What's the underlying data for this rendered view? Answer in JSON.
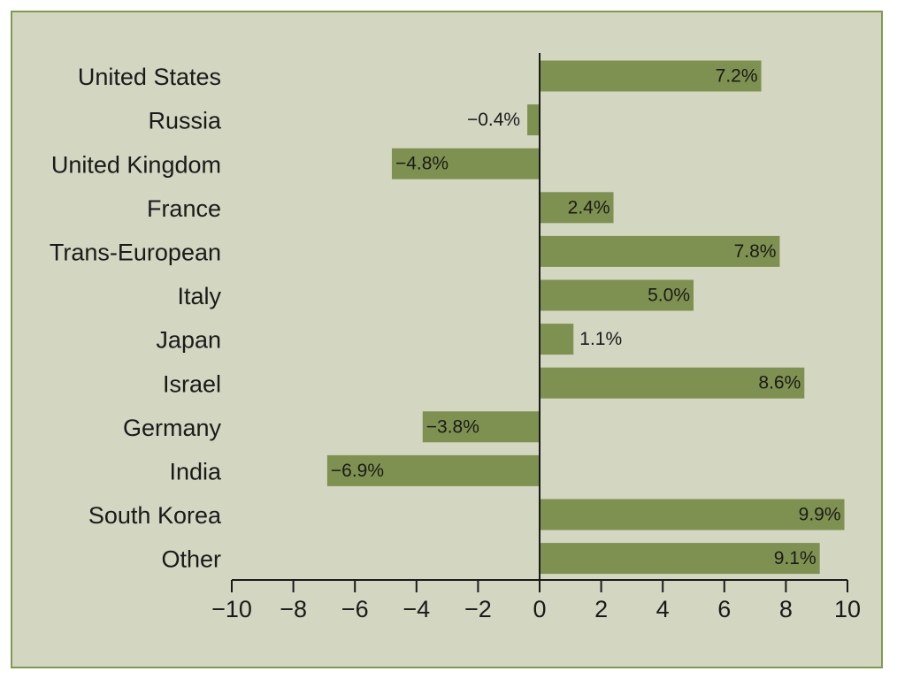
{
  "chart_data": {
    "type": "bar",
    "orientation": "horizontal",
    "categories": [
      "United States",
      "Russia",
      "United Kingdom",
      "France",
      "Trans-European",
      "Italy",
      "Japan",
      "Israel",
      "Germany",
      "India",
      "South Korea",
      "Other"
    ],
    "values": [
      7.2,
      -0.4,
      -4.8,
      2.4,
      7.8,
      5.0,
      1.1,
      8.6,
      -3.8,
      -6.9,
      9.9,
      9.1
    ],
    "value_labels": [
      "7.2%",
      "−0.4%",
      "−4.8%",
      "2.4%",
      "7.8%",
      "5.0%",
      "1.1%",
      "8.6%",
      "−3.8%",
      "−6.9%",
      "9.9%",
      "9.1%"
    ],
    "xlim": [
      -10,
      10
    ],
    "xticks": [
      -10,
      -8,
      -6,
      -4,
      -2,
      0,
      2,
      4,
      6,
      8,
      10
    ],
    "xtick_labels": [
      "−10",
      "−8",
      "−6",
      "−4",
      "−2",
      "0",
      "2",
      "4",
      "6",
      "8",
      "10"
    ],
    "grid": false,
    "legend": "none",
    "colors": {
      "bar": "#7f9150",
      "background": "#d3d6c1",
      "border": "#7f9a4f",
      "axis": "#1a1a1a"
    }
  }
}
